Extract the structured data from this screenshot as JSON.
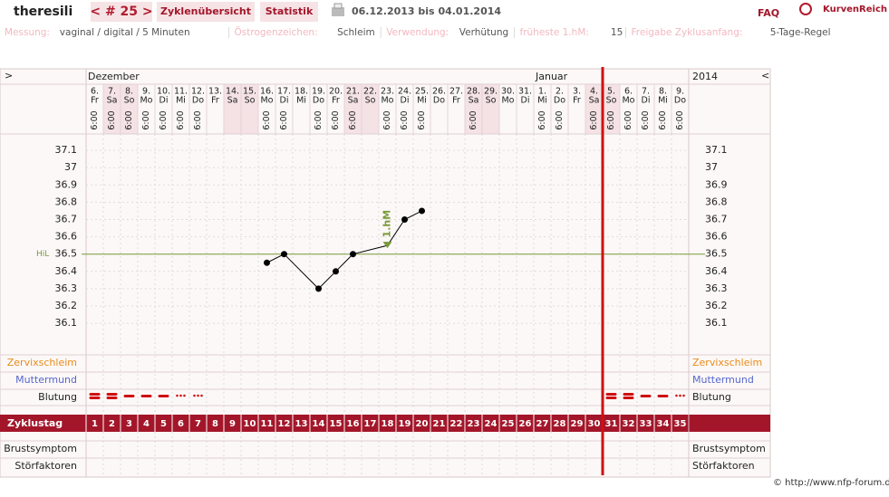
{
  "header": {
    "user": "theresili",
    "cycle_nav": "< # 25 >",
    "tabs": [
      "Zyklenübersicht",
      "Statistik"
    ],
    "date_range": "06.12.2013 bis 04.01.2014",
    "faq": "FAQ",
    "logo": "KurvenReich"
  },
  "info": [
    {
      "label": "Messung:",
      "value": "vaginal / digital / 5 Minuten"
    },
    {
      "label": "Östrogenzeichen:",
      "value": "Schleim"
    },
    {
      "label": "Verwendung:",
      "value": "Verhütung"
    },
    {
      "label": "früheste 1.hM:",
      "value": "15"
    },
    {
      "label": "Freigabe Zyklusanfang:",
      "value": "5-Tage-Regel"
    }
  ],
  "nav": {
    "prev": ">",
    "next": "<",
    "year": "2014"
  },
  "days": [
    {
      "day": "6.",
      "weekday": "Fr",
      "time": "6:00",
      "month": "Dezember"
    },
    {
      "day": "7.",
      "weekday": "Sa",
      "time": "6:00",
      "shaded": true
    },
    {
      "day": "8.",
      "weekday": "So",
      "time": "6:00",
      "shaded": true
    },
    {
      "day": "9.",
      "weekday": "Mo",
      "time": "6:00"
    },
    {
      "day": "10.",
      "weekday": "Di",
      "time": "6:00"
    },
    {
      "day": "11.",
      "weekday": "Mi",
      "time": "6:00"
    },
    {
      "day": "12.",
      "weekday": "Do",
      "time": "6:00"
    },
    {
      "day": "13.",
      "weekday": "Fr"
    },
    {
      "day": "14.",
      "weekday": "Sa",
      "shaded": true
    },
    {
      "day": "15.",
      "weekday": "So",
      "shaded": true
    },
    {
      "day": "16.",
      "weekday": "Mo",
      "time": "6:00"
    },
    {
      "day": "17.",
      "weekday": "Di",
      "time": "6:00"
    },
    {
      "day": "18.",
      "weekday": "Mi"
    },
    {
      "day": "19.",
      "weekday": "Do",
      "time": "6:00"
    },
    {
      "day": "20.",
      "weekday": "Fr",
      "time": "6:00"
    },
    {
      "day": "21.",
      "weekday": "Sa",
      "time": "6:00",
      "shaded": true
    },
    {
      "day": "22.",
      "weekday": "So",
      "shaded": true
    },
    {
      "day": "23.",
      "weekday": "Mo",
      "time": "6:00"
    },
    {
      "day": "24.",
      "weekday": "Di",
      "time": "6:00"
    },
    {
      "day": "25.",
      "weekday": "Mi",
      "time": "6:00"
    },
    {
      "day": "26.",
      "weekday": "Do"
    },
    {
      "day": "27.",
      "weekday": "Fr"
    },
    {
      "day": "28.",
      "weekday": "Sa",
      "time": "6:00",
      "shaded": true
    },
    {
      "day": "29.",
      "weekday": "So",
      "shaded": true
    },
    {
      "day": "30.",
      "weekday": "Mo"
    },
    {
      "day": "31.",
      "weekday": "Di"
    },
    {
      "day": "1.",
      "weekday": "Mi",
      "time": "6:00",
      "month": "Januar"
    },
    {
      "day": "2.",
      "weekday": "Do",
      "time": "6:00"
    },
    {
      "day": "3.",
      "weekday": "Fr"
    },
    {
      "day": "4.",
      "weekday": "Sa",
      "time": "6:00",
      "shaded": true
    },
    {
      "day": "5.",
      "weekday": "So",
      "time": "6:00",
      "shaded": true
    },
    {
      "day": "6.",
      "weekday": "Mo",
      "time": "6:00"
    },
    {
      "day": "7.",
      "weekday": "Di",
      "time": "6:00"
    },
    {
      "day": "8.",
      "weekday": "Mi",
      "time": "6:00"
    },
    {
      "day": "9.",
      "weekday": "Do",
      "time": "6:00"
    }
  ],
  "rows": {
    "zervix": "Zervixschleim",
    "muttermund": "Muttermund",
    "blutung": "Blutung",
    "zyklustag": "Zyklustag",
    "brust": "Brustsymptom",
    "stoer": "Störfaktoren"
  },
  "cycle_days": [
    1,
    2,
    3,
    4,
    5,
    6,
    7,
    8,
    9,
    10,
    11,
    12,
    13,
    14,
    15,
    16,
    17,
    18,
    19,
    20,
    21,
    22,
    23,
    24,
    25,
    26,
    27,
    28,
    29,
    30,
    31,
    32,
    33,
    34,
    35
  ],
  "chart_data": {
    "type": "line",
    "x": [
      11,
      12,
      14,
      15,
      16,
      18,
      19,
      20
    ],
    "values": [
      36.45,
      36.5,
      36.3,
      36.4,
      36.5,
      36.55,
      36.7,
      36.75
    ],
    "color": "#000000",
    "xlim": [
      0.5,
      35.5
    ],
    "ylim": [
      35.9,
      37.2
    ],
    "yticks": [
      36.1,
      36.2,
      36.3,
      36.4,
      36.5,
      36.6,
      36.7,
      36.8,
      36.9,
      37,
      37.1
    ],
    "grid": true,
    "hil": {
      "label": "HiL",
      "value": 36.5,
      "color": "#7a9a3a"
    },
    "annotation": {
      "text": "1.hM",
      "x": 18
    }
  },
  "copyright": "© http://www.nfp-forum.de"
}
